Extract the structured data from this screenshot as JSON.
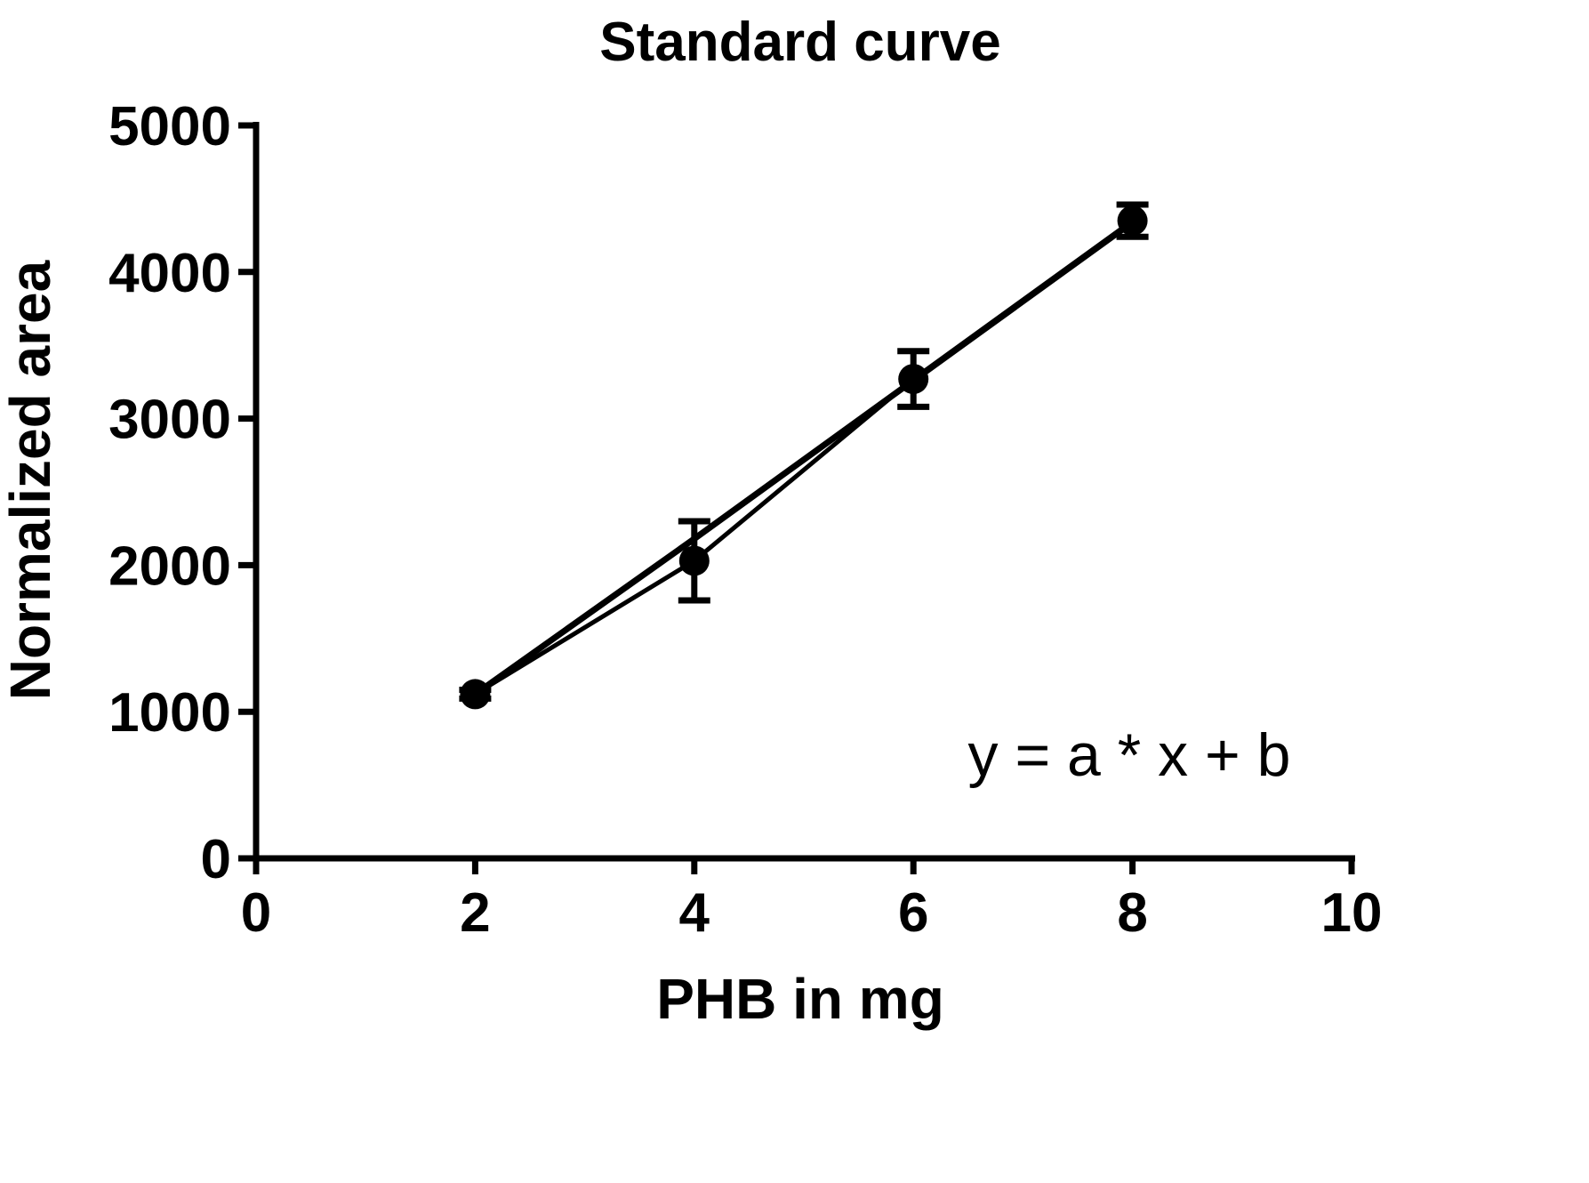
{
  "chart_data": {
    "type": "line",
    "title": "Standard curve",
    "xlabel": "PHB in mg",
    "ylabel": "Normalized area",
    "xlim": [
      0,
      10
    ],
    "ylim": [
      0,
      5000
    ],
    "x_ticks": [
      0,
      2,
      4,
      6,
      8,
      10
    ],
    "x_tick_labels": [
      "0",
      "2",
      "4",
      "6",
      "8",
      "10"
    ],
    "y_ticks": [
      0,
      1000,
      2000,
      3000,
      4000,
      5000
    ],
    "y_tick_labels": [
      "0",
      "1000",
      "2000",
      "3000",
      "4000",
      "5000"
    ],
    "grid": false,
    "series": [
      {
        "style": "markers-with-error-bars",
        "x": [
          2,
          4,
          6,
          8
        ],
        "y": [
          1120,
          2030,
          3270,
          4350
        ],
        "error": [
          30,
          270,
          190,
          110
        ]
      },
      {
        "style": "fit-line",
        "x": [
          2,
          4,
          6,
          8
        ],
        "y": [
          1120,
          2180,
          3260,
          4340
        ]
      }
    ],
    "annotation": "y = a * x + b",
    "color": "#000000"
  }
}
